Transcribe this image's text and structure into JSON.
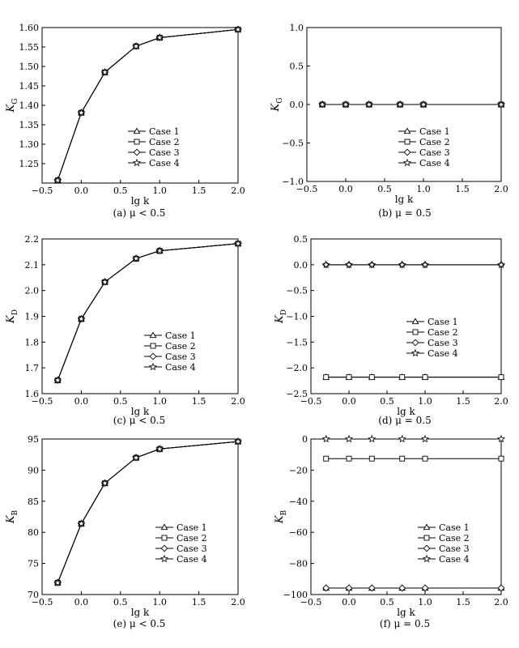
{
  "chart_data": [
    {
      "type": "line",
      "ylabel_main": "K",
      "ylabel_sub": "G",
      "xlabel": "lg k",
      "caption": "(a) μ < 0.5",
      "xlim": [
        -0.5,
        2.0
      ],
      "xticks": [
        "−0.5",
        "0.0",
        "0.5",
        "1.0",
        "1.5",
        "2.0"
      ],
      "ylim": [
        1.2,
        1.6
      ],
      "yticks": [
        "1.25",
        "1.30",
        "1.35",
        "1.40",
        "1.45",
        "1.50",
        "1.55",
        "1.60"
      ],
      "ytick_values": [
        1.25,
        1.3,
        1.35,
        1.4,
        1.45,
        1.5,
        1.55,
        1.6
      ],
      "x": [
        -0.301,
        0.0,
        0.301,
        0.699,
        1.0,
        2.0
      ],
      "series": [
        {
          "name": "Case 1",
          "marker": "triangle",
          "values": [
            1.207,
            1.381,
            1.485,
            1.552,
            1.574,
            1.595
          ]
        },
        {
          "name": "Case 2",
          "marker": "square",
          "values": [
            1.207,
            1.381,
            1.485,
            1.552,
            1.574,
            1.595
          ]
        },
        {
          "name": "Case 3",
          "marker": "diamond",
          "values": [
            1.207,
            1.381,
            1.485,
            1.552,
            1.574,
            1.595
          ]
        },
        {
          "name": "Case 4",
          "marker": "star",
          "values": [
            1.207,
            1.381,
            1.485,
            1.552,
            1.574,
            1.595
          ]
        }
      ],
      "grid": false,
      "legend": "lower-right"
    },
    {
      "type": "line",
      "ylabel_main": "K",
      "ylabel_sub": "G",
      "xlabel": "lg k",
      "caption": "(b) μ = 0.5",
      "xlim": [
        -0.5,
        2.0
      ],
      "xticks": [
        "−0.5",
        "0.0",
        "0.5",
        "1.0",
        "1.5",
        "2.0"
      ],
      "ylim": [
        -1.0,
        1.0
      ],
      "yticks": [
        "−1.0",
        "−0.5",
        "0.0",
        "0.5",
        "1.0"
      ],
      "ytick_values": [
        -1.0,
        -0.5,
        0.0,
        0.5,
        1.0
      ],
      "x": [
        -0.301,
        0.0,
        0.301,
        0.699,
        1.0,
        2.0
      ],
      "series": [
        {
          "name": "Case 1",
          "marker": "triangle",
          "values": [
            0,
            0,
            0,
            0,
            0,
            0
          ]
        },
        {
          "name": "Case 2",
          "marker": "square",
          "values": [
            0,
            0,
            0,
            0,
            0,
            0
          ]
        },
        {
          "name": "Case 3",
          "marker": "diamond",
          "values": [
            0,
            0,
            0,
            0,
            0,
            0
          ]
        },
        {
          "name": "Case 4",
          "marker": "star",
          "values": [
            0,
            0,
            0,
            0,
            0,
            0
          ]
        }
      ],
      "grid": false,
      "legend": "lower-right"
    },
    {
      "type": "line",
      "ylabel_main": "K",
      "ylabel_sub": "D",
      "xlabel": "lg k",
      "caption": "(c) μ < 0.5",
      "xlim": [
        -0.5,
        2.0
      ],
      "xticks": [
        "−0.5",
        "0.0",
        "0.5",
        "1.0",
        "1.5",
        "2.0"
      ],
      "ylim": [
        1.6,
        2.2
      ],
      "yticks": [
        "1.6",
        "1.7",
        "1.8",
        "1.9",
        "2.0",
        "2.1",
        "2.2"
      ],
      "ytick_values": [
        1.6,
        1.7,
        1.8,
        1.9,
        2.0,
        2.1,
        2.2
      ],
      "x": [
        -0.301,
        0.0,
        0.301,
        0.699,
        1.0,
        2.0
      ],
      "series": [
        {
          "name": "Case 1",
          "marker": "triangle",
          "values": [
            1.652,
            1.89,
            2.033,
            2.124,
            2.154,
            2.182
          ]
        },
        {
          "name": "Case 2",
          "marker": "square",
          "values": [
            1.652,
            1.89,
            2.033,
            2.124,
            2.154,
            2.182
          ]
        },
        {
          "name": "Case 3",
          "marker": "diamond",
          "values": [
            1.652,
            1.89,
            2.033,
            2.124,
            2.154,
            2.182
          ]
        },
        {
          "name": "Case 4",
          "marker": "star",
          "values": [
            1.652,
            1.89,
            2.033,
            2.124,
            2.154,
            2.182
          ]
        }
      ],
      "grid": false,
      "legend": "lower-right"
    },
    {
      "type": "line",
      "ylabel_main": "K",
      "ylabel_sub": "D",
      "xlabel": "lg k",
      "caption": "(d) μ = 0.5",
      "xlim": [
        -0.5,
        2.0
      ],
      "xticks": [
        "−0.5",
        "0.0",
        "0.5",
        "1.0",
        "1.5",
        "2.0"
      ],
      "ylim": [
        -2.5,
        0.5
      ],
      "yticks": [
        "−2.5",
        "−2.0",
        "−1.5",
        "−1.0",
        "−0.5",
        "0.0",
        "0.5"
      ],
      "ytick_values": [
        -2.5,
        -2.0,
        -1.5,
        -1.0,
        -0.5,
        0.0,
        0.5
      ],
      "x": [
        -0.301,
        0.0,
        0.301,
        0.699,
        1.0,
        2.0
      ],
      "series": [
        {
          "name": "Case 1",
          "marker": "triangle",
          "values": [
            -2.18,
            -2.18,
            -2.18,
            -2.18,
            -2.18,
            -2.18
          ]
        },
        {
          "name": "Case 2",
          "marker": "square",
          "values": [
            -2.18,
            -2.18,
            -2.18,
            -2.18,
            -2.18,
            -2.18
          ]
        },
        {
          "name": "Case 3",
          "marker": "diamond",
          "values": [
            0,
            0,
            0,
            0,
            0,
            0
          ]
        },
        {
          "name": "Case 4",
          "marker": "star",
          "values": [
            0,
            0,
            0,
            0,
            0,
            0
          ]
        }
      ],
      "grid": false,
      "legend": "center-right"
    },
    {
      "type": "line",
      "ylabel_main": "K",
      "ylabel_sub": "B",
      "xlabel": "lg k",
      "caption": "(e) μ < 0.5",
      "xlim": [
        -0.5,
        2.0
      ],
      "xticks": [
        "−0.5",
        "0.0",
        "0.5",
        "1.0",
        "1.5",
        "2.0"
      ],
      "ylim": [
        70,
        95
      ],
      "yticks": [
        "70",
        "75",
        "80",
        "85",
        "90",
        "95"
      ],
      "ytick_values": [
        70,
        75,
        80,
        85,
        90,
        95
      ],
      "x": [
        -0.301,
        0.0,
        0.301,
        0.699,
        1.0,
        2.0
      ],
      "series": [
        {
          "name": "Case 1",
          "marker": "triangle",
          "values": [
            71.9,
            81.4,
            87.9,
            92.0,
            93.4,
            94.6
          ]
        },
        {
          "name": "Case 2",
          "marker": "square",
          "values": [
            71.9,
            81.4,
            87.9,
            92.0,
            93.4,
            94.6
          ]
        },
        {
          "name": "Case 3",
          "marker": "diamond",
          "values": [
            71.9,
            81.4,
            87.9,
            92.0,
            93.4,
            94.6
          ]
        },
        {
          "name": "Case 4",
          "marker": "star",
          "values": [
            71.9,
            81.4,
            87.9,
            92.0,
            93.4,
            94.6
          ]
        }
      ],
      "grid": false,
      "legend": "lower-right"
    },
    {
      "type": "line",
      "ylabel_main": "K",
      "ylabel_sub": "B",
      "xlabel": "lg k",
      "caption": "(f) μ = 0.5",
      "xlim": [
        -0.5,
        2.0
      ],
      "xticks": [
        "−0.5",
        "0.0",
        "0.5",
        "1.0",
        "1.5",
        "2.0"
      ],
      "ylim": [
        -100,
        0
      ],
      "yticks": [
        "−100",
        "−80",
        "−60",
        "−40",
        "−20",
        "0"
      ],
      "ytick_values": [
        -100,
        -80,
        -60,
        -40,
        -20,
        0
      ],
      "x": [
        -0.301,
        0.0,
        0.301,
        0.699,
        1.0,
        2.0
      ],
      "series": [
        {
          "name": "Case 1",
          "marker": "triangle",
          "values": [
            -95.8,
            -95.8,
            -95.8,
            -95.8,
            -95.8,
            -95.8
          ]
        },
        {
          "name": "Case 2",
          "marker": "square",
          "values": [
            -12.6,
            -12.6,
            -12.6,
            -12.6,
            -12.6,
            -12.6
          ]
        },
        {
          "name": "Case 3",
          "marker": "diamond",
          "values": [
            -95.8,
            -95.8,
            -95.8,
            -95.8,
            -95.8,
            -95.8
          ]
        },
        {
          "name": "Case 4",
          "marker": "star",
          "values": [
            0,
            0,
            0,
            0,
            0,
            0
          ]
        }
      ],
      "grid": false,
      "legend": "lower-right"
    }
  ]
}
